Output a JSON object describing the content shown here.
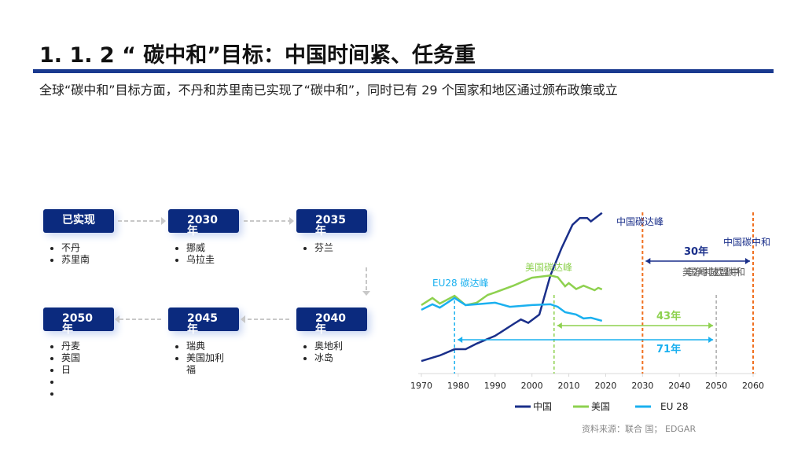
{
  "title": "1. 1. 2 “ 碳中和”目标：中国时间紧、任务重",
  "subtitle": "全球“碳中和”目标方面，不丹和苏里南已实现了“碳中和”，同时已有 29 个国家和地区通过颁布政策或立",
  "timeline": [
    {
      "label": "已实现",
      "items": [
        "不丹",
        "苏里南"
      ]
    },
    {
      "label": "2030年",
      "items": [
        "挪威",
        "乌拉圭"
      ]
    },
    {
      "label": "2035年",
      "items": [
        "芬兰"
      ]
    },
    {
      "label": "2040年",
      "items": [
        "奥地利",
        "冰岛"
      ]
    },
    {
      "label": "2045年",
      "items": [
        "瑞典",
        "美国加利福"
      ]
    },
    {
      "label": "2050年",
      "items": [
        "丹麦",
        "英国",
        "日",
        "",
        ""
      ]
    }
  ],
  "colors": {
    "china": "#1a2f8a",
    "usa": "#8ed14f",
    "eu": "#1ab0ef",
    "orange": "#f07020",
    "gray": "#aaaaaa",
    "box": "#0b2a7e"
  },
  "chart_data": {
    "type": "line",
    "x_ticks": [
      1970,
      1980,
      1990,
      2000,
      2010,
      2020,
      2030,
      2040,
      2050,
      2060
    ],
    "xlim": [
      1970,
      2060
    ],
    "series": [
      {
        "name": "中国",
        "color": "#1a2f8a",
        "x": [
          1970,
          1975,
          1979,
          1982,
          1985,
          1990,
          1995,
          1997,
          1999,
          2002,
          2005,
          2008,
          2011,
          2013,
          2015,
          2016,
          2019
        ],
        "y": [
          7.4,
          10.7,
          14.4,
          14.4,
          17.7,
          22.3,
          29.3,
          32,
          30,
          34.9,
          58,
          74,
          88,
          92,
          92,
          90,
          95
        ]
      },
      {
        "name": "美国",
        "color": "#8ed14f",
        "x": [
          1970,
          1973,
          1975,
          1979,
          1982,
          1985,
          1988,
          1990,
          1995,
          2000,
          2005,
          2007,
          2009,
          2010,
          2012,
          2014,
          2017,
          2018,
          2019
        ],
        "y": [
          40.5,
          44.7,
          41.4,
          46,
          40.5,
          41.9,
          46.5,
          48,
          52,
          56.7,
          58,
          57,
          51.6,
          53.5,
          50,
          52,
          49.3,
          50.7,
          49.8
        ]
      },
      {
        "name": "EU 28",
        "color": "#1ab0ef",
        "x": [
          1970,
          1973,
          1975,
          1979,
          1982,
          1985,
          1990,
          1994,
          2000,
          2005,
          2007,
          2009,
          2012,
          2014,
          2016,
          2019
        ],
        "y": [
          37.7,
          41,
          39,
          44.7,
          40.5,
          41,
          41.9,
          39.5,
          40.5,
          41,
          39.5,
          36.3,
          34.9,
          32.6,
          33,
          31.2
        ]
      }
    ],
    "markers": [
      {
        "year": 1979,
        "label": "EU28 碳达峰",
        "color": "#1ab0ef"
      },
      {
        "year": 2006,
        "label": "美国碳达峰",
        "color": "#8ed14f"
      },
      {
        "year": 2030,
        "label": "中国碳达峰",
        "color": "#f07020"
      },
      {
        "year": 2050,
        "label": "美国净零排放 欧盟碳中和",
        "color": "#aaaaaa"
      },
      {
        "year": 2060,
        "label": "中国碳中和",
        "color": "#f07020"
      }
    ],
    "spans": [
      {
        "from": 2030,
        "to": 2060,
        "label": "30年",
        "color": "#1a2f8a"
      },
      {
        "from": 2006,
        "to": 2050,
        "label": "43年",
        "color": "#8ed14f"
      },
      {
        "from": 1979,
        "to": 2050,
        "label": "71年",
        "color": "#1ab0ef"
      }
    ],
    "legend": [
      "中国",
      "美国",
      "EU 28"
    ]
  },
  "source": "资料来源：联合 国； EDGAR"
}
